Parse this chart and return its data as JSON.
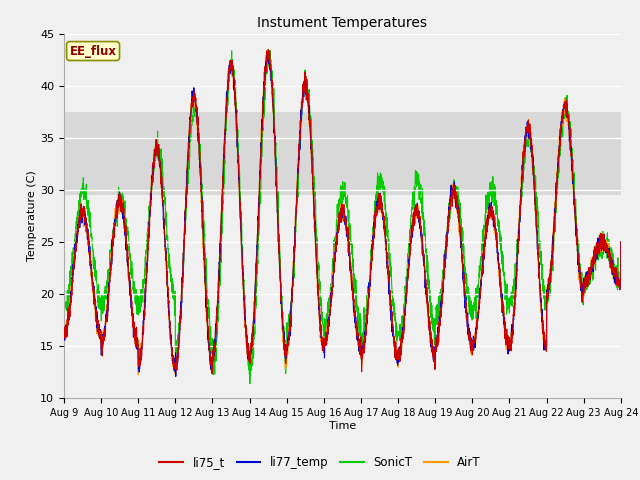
{
  "title": "Instument Temperatures",
  "xlabel": "Time",
  "ylabel": "Temperature (C)",
  "ylim": [
    10,
    45
  ],
  "xlim": [
    0,
    15
  ],
  "x_tick_labels": [
    "Aug 9",
    "Aug 10",
    "Aug 11",
    "Aug 12",
    "Aug 13",
    "Aug 14",
    "Aug 15",
    "Aug 16",
    "Aug 17",
    "Aug 18",
    "Aug 19",
    "Aug 20",
    "Aug 21",
    "Aug 22",
    "Aug 23",
    "Aug 24"
  ],
  "shaded_band": [
    29.5,
    37.5
  ],
  "legend_label": "EE_flux",
  "series_colors": {
    "li75_t": "#cc0000",
    "li77_temp": "#0000cc",
    "SonicT": "#00cc00",
    "AirT": "#ff9900"
  },
  "background_color": "#f0f0f0",
  "grid_color": "#ffffff",
  "day_peaks": [
    28,
    29,
    34,
    39,
    42,
    43,
    40,
    28,
    29,
    28,
    30,
    28,
    36,
    38,
    25
  ],
  "day_mins": [
    16,
    15,
    13,
    13,
    14,
    14,
    15,
    15,
    14,
    14,
    15,
    15,
    15,
    20,
    21
  ],
  "sonic_peaks": [
    30,
    29,
    34,
    38,
    42,
    43,
    40,
    30,
    31,
    31,
    30,
    30,
    35,
    38,
    25
  ],
  "sonic_mins": [
    19,
    19,
    19,
    15,
    13,
    13,
    17,
    17,
    16,
    16,
    18,
    19,
    19,
    20,
    21
  ]
}
